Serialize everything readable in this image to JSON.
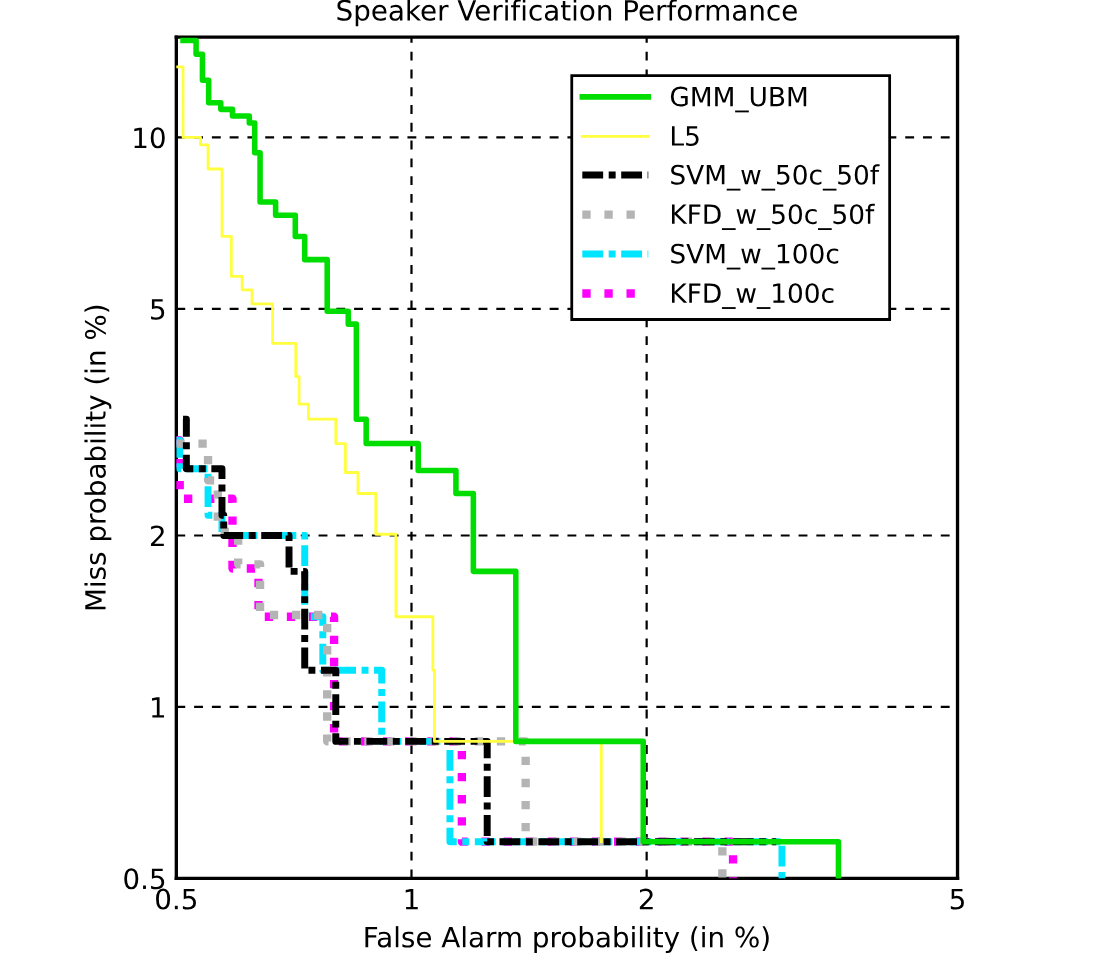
{
  "chart_data": {
    "type": "step",
    "title": "Speaker Verification Performance",
    "xlabel": "False Alarm probability (in %)",
    "ylabel": "Miss probability (in %)",
    "log": "xy",
    "xlim": [
      0.5,
      5
    ],
    "ylim": [
      0.5,
      15
    ],
    "xticks": [
      0.5,
      1,
      2,
      5
    ],
    "yticks": [
      0.5,
      1,
      2,
      5,
      10
    ],
    "grid": true,
    "legend": "top right",
    "series": [
      {
        "name": "GMM_UBM",
        "color": "#00dd00",
        "line_style": "solid",
        "x": [
          0.51,
          0.53,
          0.54,
          0.55,
          0.57,
          0.59,
          0.62,
          0.63,
          0.64,
          0.67,
          0.71,
          0.73,
          0.78,
          0.83,
          0.85,
          0.875,
          1.02,
          1.14,
          1.2,
          1.36,
          1.98,
          3.52
        ],
        "values": [
          14.8,
          14.0,
          12.6,
          11.5,
          11.2,
          10.9,
          10.6,
          9.4,
          7.7,
          7.3,
          6.7,
          6.1,
          4.95,
          4.7,
          3.2,
          2.9,
          2.6,
          2.37,
          1.73,
          0.87,
          0.58,
          0.5
        ]
      },
      {
        "name": "L5",
        "color": "#ffff40",
        "line_style": "solid",
        "x": [
          0.5,
          0.51,
          0.537,
          0.549,
          0.572,
          0.588,
          0.607,
          0.625,
          0.664,
          0.711,
          0.718,
          0.738,
          0.8,
          0.823,
          0.854,
          0.9,
          0.955,
          1.065,
          1.07,
          1.75
        ],
        "values": [
          13.3,
          10.0,
          9.7,
          8.8,
          6.7,
          5.7,
          5.4,
          5.1,
          4.35,
          3.8,
          3.4,
          3.2,
          2.9,
          2.58,
          2.37,
          2.01,
          1.44,
          1.16,
          0.87,
          0.58
        ]
      },
      {
        "name": "SVM_w_50c_50f",
        "color": "#000000",
        "line_style": "dashdot",
        "x": [
          0.51,
          0.515,
          0.572,
          0.575,
          0.697,
          0.73,
          0.8,
          1.25,
          2.93
        ],
        "values": [
          3.2,
          2.62,
          2.17,
          2.0,
          1.73,
          1.16,
          0.87,
          0.58,
          0.58
        ]
      },
      {
        "name": "KFD_w_50c_50f",
        "color": "#b4b4b4",
        "line_style": "dotted",
        "x": [
          0.5,
          0.549,
          0.565,
          0.6,
          0.64,
          0.78,
          1.4,
          2.5
        ],
        "values": [
          2.9,
          2.5,
          2.03,
          1.78,
          1.45,
          0.87,
          0.58,
          0.5
        ]
      },
      {
        "name": "SVM_w_100c",
        "color": "#00e5ff",
        "line_style": "dashdot",
        "x": [
          0.5,
          0.505,
          0.549,
          0.572,
          0.73,
          0.77,
          0.916,
          1.12,
          2.98
        ],
        "values": [
          2.94,
          2.62,
          2.17,
          2.0,
          1.44,
          1.16,
          0.87,
          0.58,
          0.5
        ]
      },
      {
        "name": "KFD_w_100c",
        "color": "#ff00ff",
        "line_style": "dotted",
        "x": [
          0.5,
          0.505,
          0.59,
          0.637,
          0.796,
          1.16,
          2.58
        ],
        "values": [
          2.94,
          2.32,
          1.75,
          1.44,
          0.87,
          0.58,
          0.5
        ]
      }
    ]
  }
}
